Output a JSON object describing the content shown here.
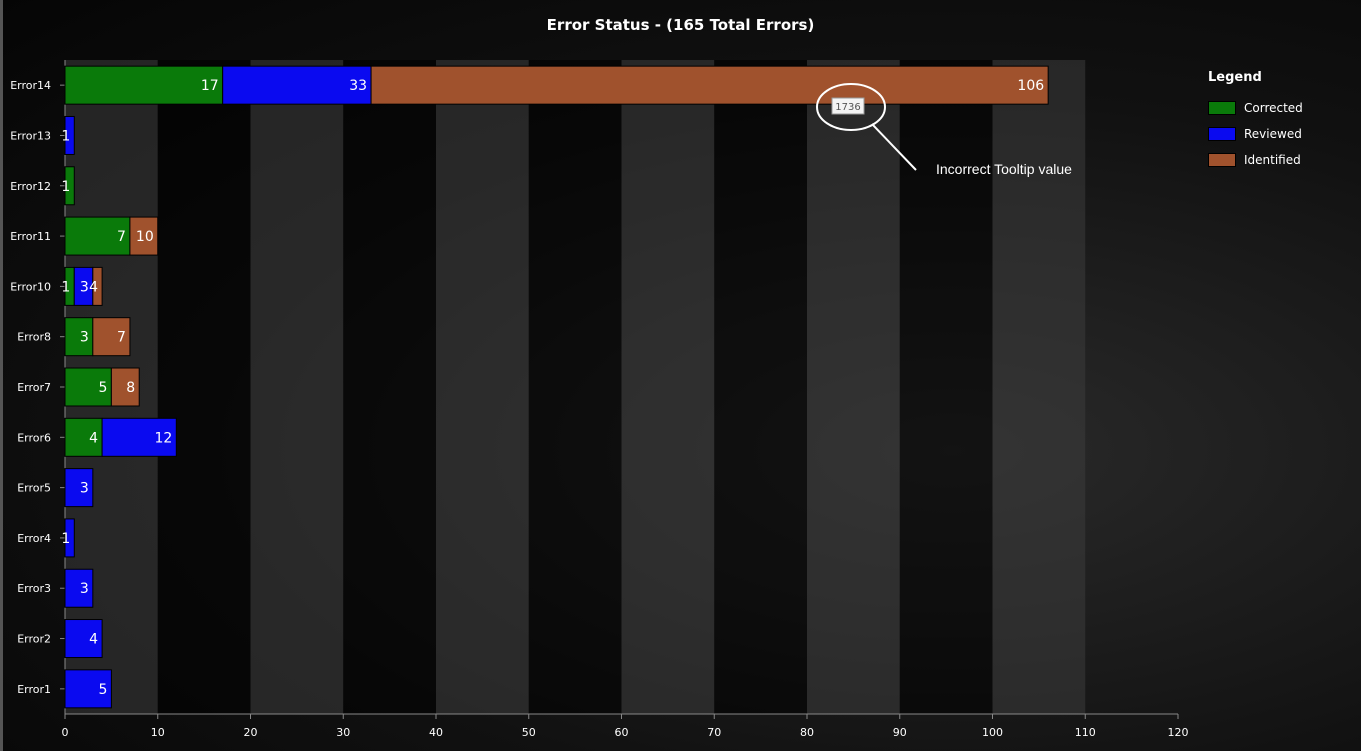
{
  "chart_data": {
    "type": "bar",
    "orientation": "horizontal",
    "stacked": true,
    "title": "Error Status -  (165 Total Errors)",
    "categories": [
      "Error14",
      "Error13",
      "Error12",
      "Error11",
      "Error10",
      "Error8",
      "Error7",
      "Error6",
      "Error5",
      "Error4",
      "Error3",
      "Error2",
      "Error1"
    ],
    "series": [
      {
        "name": "Corrected",
        "color": "#0a7a0a",
        "values": [
          17,
          0,
          1,
          7,
          1,
          3,
          5,
          4,
          0,
          0,
          0,
          0,
          0
        ]
      },
      {
        "name": "Reviewed",
        "color": "#0a0af0",
        "values": [
          16,
          1,
          0,
          0,
          2,
          0,
          0,
          8,
          3,
          1,
          3,
          4,
          5
        ]
      },
      {
        "name": "Identified",
        "color": "#a0522d",
        "values": [
          73,
          0,
          0,
          3,
          1,
          4,
          3,
          0,
          0,
          0,
          0,
          0,
          0
        ]
      }
    ],
    "data_labels": [
      [
        "17",
        "33",
        "106"
      ],
      [
        "",
        "1",
        ""
      ],
      [
        "1",
        "",
        ""
      ],
      [
        "7",
        "",
        "10"
      ],
      [
        "1",
        "3",
        "4"
      ],
      [
        "3",
        "",
        "7"
      ],
      [
        "5",
        "",
        "8"
      ],
      [
        "4",
        "12",
        ""
      ],
      [
        "",
        "3",
        ""
      ],
      [
        "",
        "1",
        ""
      ],
      [
        "",
        "3",
        ""
      ],
      [
        "",
        "4",
        ""
      ],
      [
        "",
        "5",
        ""
      ]
    ],
    "xlim": [
      0,
      120
    ],
    "xticks": [
      0,
      10,
      20,
      30,
      40,
      50,
      60,
      70,
      80,
      90,
      100,
      110,
      120
    ],
    "legend_title": "Legend",
    "legend_position": "right",
    "tooltip": {
      "value": "1736"
    },
    "annotation": {
      "text": "Incorrect Tooltip value"
    }
  }
}
